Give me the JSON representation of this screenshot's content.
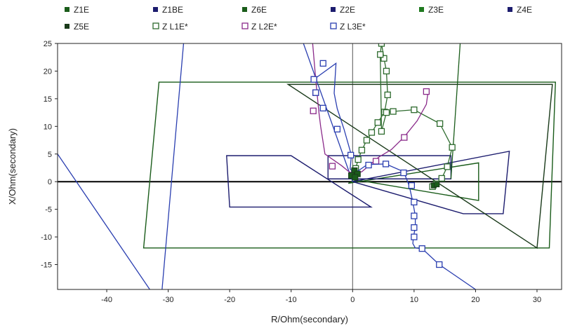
{
  "chart_data": {
    "type": "scatter",
    "title": "",
    "xlabel": "R/Ohm(secondary)",
    "ylabel": "X/Ohm(secondary)",
    "xlim": [
      -48,
      34
    ],
    "ylim": [
      -19.5,
      25
    ],
    "xticks": [
      -40,
      -30,
      -20,
      -10,
      0,
      10,
      20,
      30
    ],
    "yticks": [
      -15,
      -10,
      -5,
      0,
      5,
      10,
      15,
      20,
      25
    ],
    "grid": false,
    "legend_position": "top",
    "legend": [
      {
        "label": "Z1E",
        "color": "#1a5c1a",
        "marker": "filled-square"
      },
      {
        "label": "Z1BE",
        "color": "#1c1c6e",
        "marker": "filled-square"
      },
      {
        "label": "Z6E",
        "color": "#1a5c1a",
        "marker": "filled-square"
      },
      {
        "label": "Z2E",
        "color": "#1c1c6e",
        "marker": "filled-square"
      },
      {
        "label": "Z3E",
        "color": "#1f7a1f",
        "marker": "filled-square"
      },
      {
        "label": "Z4E",
        "color": "#1c1c6e",
        "marker": "filled-square"
      },
      {
        "label": "Z5E",
        "color": "#1a3a1a",
        "marker": "filled-square"
      },
      {
        "label": "Z L1E*",
        "color": "#2e6b2e",
        "marker": "open-square"
      },
      {
        "label": "Z L2E*",
        "color": "#8a2a8a",
        "marker": "open-square"
      },
      {
        "label": "Z L3E*",
        "color": "#2a3eb0",
        "marker": "open-square"
      }
    ],
    "characteristics": [
      {
        "name": "Z1E",
        "color": "#1a5c1a",
        "points": [
          [
            -0.7,
            -0.3
          ],
          [
            20.5,
            3.4
          ],
          [
            20.5,
            -3.4
          ],
          [
            0.7,
            0.3
          ]
        ]
      },
      {
        "name": "Z1BE",
        "color": "#1c1c6e",
        "points": [
          [
            -20,
            -4.6
          ],
          [
            -20.5,
            4.7
          ],
          [
            -10,
            4.7
          ],
          [
            3,
            -4.6
          ]
        ]
      },
      {
        "name": "Z2E",
        "color": "#1c1c6e",
        "points": [
          [
            0,
            0
          ],
          [
            25.5,
            5.5
          ],
          [
            24.5,
            -5.8
          ],
          [
            18,
            -5.8
          ]
        ]
      },
      {
        "name": "Z3E",
        "color": "#1a5c1a",
        "points": [
          [
            -34,
            -12
          ],
          [
            -31.5,
            18
          ],
          [
            33,
            18
          ],
          [
            32,
            -12
          ]
        ]
      },
      {
        "name": "Z4E",
        "color": "#1c1c6e",
        "points": [
          [
            -4,
            4.7
          ],
          [
            16,
            4.7
          ],
          [
            16,
            0.5
          ],
          [
            -4,
            0.5
          ]
        ]
      },
      {
        "name": "Z5E",
        "color": "#1a3a1a",
        "points": [
          [
            -10.5,
            17.6
          ],
          [
            30,
            -12
          ],
          [
            32.5,
            17.6
          ]
        ]
      },
      {
        "name": "Z6E",
        "color": "#1a5c1a",
        "points": [
          [
            0,
            0
          ],
          [
            0,
            0
          ]
        ]
      }
    ],
    "boundary_lines": [
      {
        "color": "#2a3eb0",
        "points": [
          [
            -31,
            -19.5
          ],
          [
            -27.5,
            25
          ]
        ]
      },
      {
        "color": "#2a3eb0",
        "points": [
          [
            -48,
            5
          ],
          [
            -33,
            -19.5
          ]
        ]
      },
      {
        "color": "#2a3eb0",
        "points": [
          [
            0,
            0
          ],
          [
            -8,
            25
          ]
        ]
      },
      {
        "color": "#1a5c1a",
        "points": [
          [
            16,
            0.5
          ],
          [
            17.5,
            25
          ]
        ]
      }
    ],
    "series": [
      {
        "name": "Z L1E*",
        "color": "#2e6b2e",
        "x": [
          0.5,
          0.9,
          1.5,
          2.3,
          3.1,
          4.1,
          5.2,
          5.7,
          5.5,
          5.1,
          4.7,
          4.5,
          4.7,
          5.5,
          6.6,
          10.0,
          14.2,
          16.2,
          15.4,
          14.5,
          13.6,
          13.0
        ],
        "y": [
          2.4,
          4.0,
          5.7,
          7.5,
          8.9,
          10.7,
          12.6,
          15.7,
          20.0,
          22.3,
          25.0,
          23.0,
          9.1,
          12.5,
          12.7,
          13.0,
          10.5,
          6.2,
          2.7,
          0.6,
          -0.4,
          -0.9
        ]
      },
      {
        "name": "Z L2E*",
        "color": "#8a2a8a",
        "x": [
          -6.5,
          -6.0,
          -5.8,
          -5.5,
          -5.2,
          -4.5,
          -1.8,
          -0.6,
          0.3,
          1.5,
          3.3,
          4.2,
          6.3,
          8.4,
          10.5,
          12.0,
          12.3
        ],
        "y": [
          25.0,
          18.5,
          16.2,
          12.7,
          10.0,
          5.0,
          2.9,
          1.8,
          1.4,
          1.8,
          3.5,
          4.4,
          5.8,
          8.1,
          11.0,
          14.0,
          16.4
        ],
        "points_shown": [
          [
            -6.3,
            18.5
          ],
          [
            -6.0,
            16.1
          ],
          [
            -6.4,
            12.8
          ],
          [
            -3.3,
            2.8
          ],
          [
            0.3,
            1.3
          ],
          [
            3.8,
            3.7
          ],
          [
            8.4,
            8.0
          ],
          [
            12.0,
            16.3
          ]
        ]
      },
      {
        "name": "Z L3E*",
        "color": "#2a3eb0",
        "x": [
          -6.3,
          -2.7,
          -3.0,
          -2.5,
          -1.4,
          -0.2,
          -0.4,
          0.3,
          2.4,
          5.4,
          8.3,
          9.2,
          9.8,
          10.2,
          10.2,
          9.9,
          9.8,
          10.2,
          11.3,
          14.1,
          20.0
        ],
        "y": [
          18.5,
          21.4,
          16.0,
          13.2,
          9.5,
          4.8,
          2.3,
          1.5,
          3.1,
          3.2,
          1.8,
          -0.7,
          -3.7,
          -6.2,
          -8.3,
          -10.0,
          -11.2,
          -12.0,
          -12.1,
          -15.0,
          -19.5
        ],
        "points_shown": [
          [
            -6.3,
            18.5
          ],
          [
            -4.8,
            21.4
          ],
          [
            -6.0,
            16.1
          ],
          [
            -4.8,
            13.3
          ],
          [
            -2.5,
            9.5
          ],
          [
            -0.3,
            4.8
          ],
          [
            0.3,
            1.5
          ],
          [
            2.6,
            3.0
          ],
          [
            5.4,
            3.2
          ],
          [
            8.3,
            1.6
          ],
          [
            9.6,
            -0.7
          ],
          [
            10.0,
            -3.7
          ],
          [
            10.0,
            -6.2
          ],
          [
            10.0,
            -8.3
          ],
          [
            10.0,
            -10.0
          ],
          [
            11.3,
            -12.1
          ],
          [
            14.1,
            -15.0
          ]
        ]
      }
    ]
  }
}
